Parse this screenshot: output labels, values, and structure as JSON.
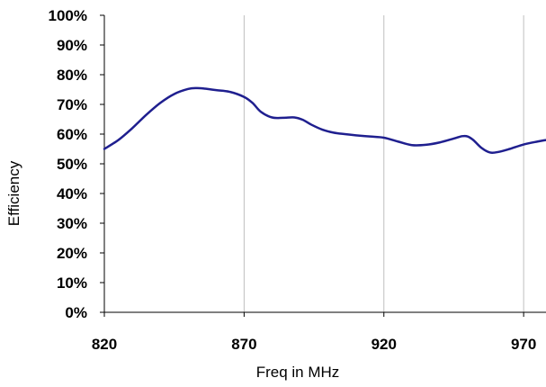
{
  "chart_data": {
    "type": "line",
    "title": "",
    "xlabel": "Freq in MHz",
    "ylabel": "Efficiency",
    "xlim": [
      820,
      978
    ],
    "ylim": [
      0,
      100
    ],
    "x_ticks": [
      820,
      870,
      920,
      970
    ],
    "x_tick_labels": [
      "820",
      "870",
      "920",
      "970"
    ],
    "y_ticks": [
      0,
      10,
      20,
      30,
      40,
      50,
      60,
      70,
      80,
      90,
      100
    ],
    "y_tick_labels": [
      "0%",
      "10%",
      "20%",
      "30%",
      "40%",
      "50%",
      "60%",
      "70%",
      "80%",
      "90%",
      "100%"
    ],
    "grid": {
      "x": true,
      "y": false
    },
    "series": [
      {
        "color": "#1f1f8f",
        "x": [
          820,
          825,
          830,
          835,
          840,
          845,
          850,
          853,
          856,
          860,
          865,
          870,
          873,
          876,
          880,
          884,
          888,
          891,
          894,
          898,
          902,
          906,
          910,
          915,
          920,
          925,
          930,
          935,
          940,
          945,
          948,
          950,
          952,
          955,
          958,
          961,
          965,
          970,
          975,
          978
        ],
        "y": [
          55,
          58,
          62,
          66.5,
          70.5,
          73.5,
          75.2,
          75.5,
          75.3,
          74.8,
          74.2,
          72.5,
          70.5,
          67.5,
          65.6,
          65.5,
          65.6,
          64.8,
          63.2,
          61.5,
          60.5,
          60,
          59.6,
          59.2,
          58.8,
          57.5,
          56.3,
          56.4,
          57.2,
          58.5,
          59.3,
          59.2,
          58,
          55.3,
          53.8,
          54,
          55,
          56.5,
          57.5,
          58
        ]
      }
    ]
  }
}
